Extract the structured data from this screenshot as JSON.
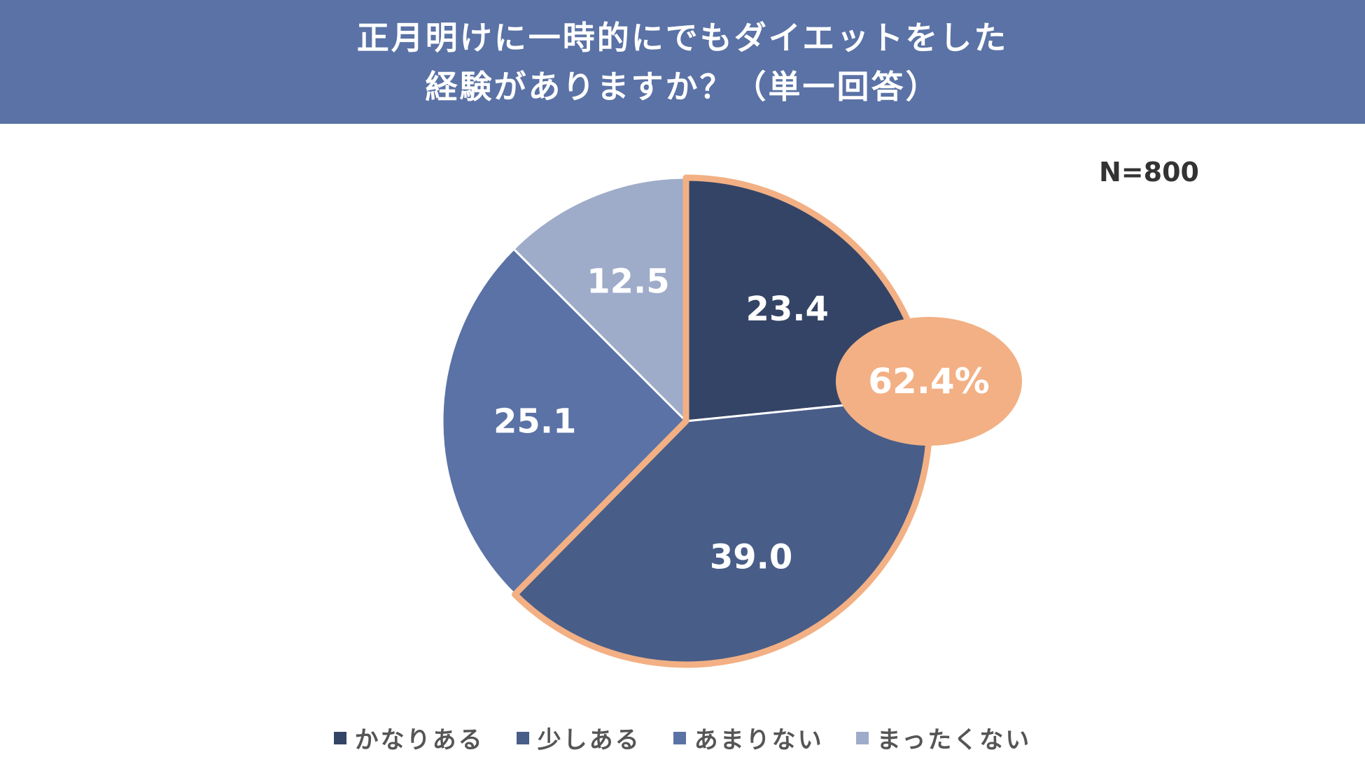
{
  "header": {
    "title_line1": "正月明けに一時的にでもダイエットをした",
    "title_line2": "経験がありますか？（単一回答）"
  },
  "sample_size": "N=800",
  "colors": {
    "header_bg": "#5a72a5",
    "highlight": "#f2b084"
  },
  "chart_data": {
    "type": "pie",
    "title": "正月明けに一時的にでもダイエットをした経験がありますか？（単一回答）",
    "slices": [
      {
        "label": "かなりある",
        "value": 23.4,
        "display": "23.4",
        "color": "#344466"
      },
      {
        "label": "少しある",
        "value": 39.0,
        "display": "39.0",
        "color": "#485d88"
      },
      {
        "label": "あまりない",
        "value": 25.1,
        "display": "25.1",
        "color": "#5a72a5"
      },
      {
        "label": "まったくない",
        "value": 12.5,
        "display": "12.5",
        "color": "#9eacca"
      }
    ],
    "highlight": {
      "slices": [
        0,
        1
      ],
      "label": "62.4%",
      "color": "#f2b084"
    },
    "start": "top",
    "direction": "clockwise",
    "legend": "bottom"
  }
}
